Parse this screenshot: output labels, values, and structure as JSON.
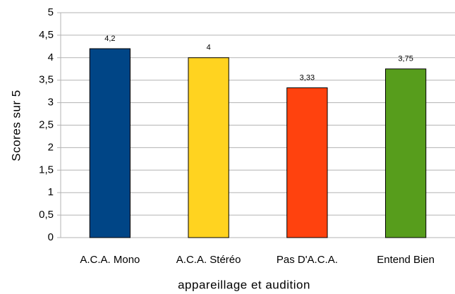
{
  "chart_data": {
    "type": "bar",
    "y_label": "Scores sur 5",
    "x_label": "appareillage et audition",
    "categories": [
      "A.C.A. Mono",
      "A.C.A. Stéréo",
      "Pas D'A.C.A.",
      "Entend Bien"
    ],
    "values": [
      4.2,
      4,
      3.33,
      3.75
    ],
    "value_labels": [
      "4,2",
      "4",
      "3,33",
      "3,75"
    ],
    "colors": [
      "#004586",
      "#ffd320",
      "#ff420e",
      "#579d1c"
    ],
    "ylim": [
      0,
      5
    ],
    "yticks": [
      0,
      {
        "value": 0.5,
        "label": "0,5"
      },
      1,
      {
        "value": 1.5,
        "label": "1,5"
      },
      2,
      {
        "value": 2.5,
        "label": "2,5"
      },
      3,
      {
        "value": 3.5,
        "label": "3,5"
      },
      4,
      {
        "value": 4.5,
        "label": "4,5"
      },
      5
    ],
    "grid": true
  }
}
